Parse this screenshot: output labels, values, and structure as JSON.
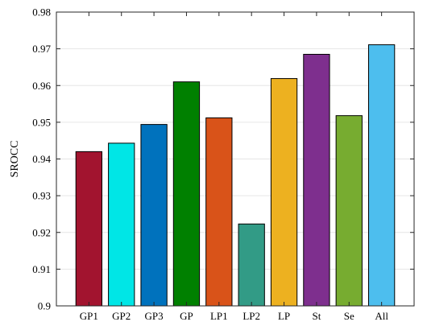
{
  "chart_data": {
    "type": "bar",
    "title": "",
    "xlabel": "",
    "ylabel": "SROCC",
    "ylim": [
      0.9,
      0.98
    ],
    "yticks": [
      "0.9",
      "0.91",
      "0.92",
      "0.93",
      "0.94",
      "0.95",
      "0.96",
      "0.97",
      "0.98"
    ],
    "grid": true,
    "categories": [
      "GP1",
      "GP2",
      "GP3",
      "GP",
      "LP1",
      "LP2",
      "LP",
      "St",
      "Se",
      "All"
    ],
    "values": [
      0.942,
      0.9443,
      0.9494,
      0.961,
      0.9512,
      0.9223,
      0.9619,
      0.9685,
      0.9518,
      0.9711
    ],
    "colors": [
      "#A2142F",
      "#00E6E6",
      "#0072BD",
      "#008000",
      "#D95319",
      "#329B86",
      "#EDB120",
      "#7E2F8E",
      "#77AC30",
      "#4DBEEE"
    ]
  }
}
